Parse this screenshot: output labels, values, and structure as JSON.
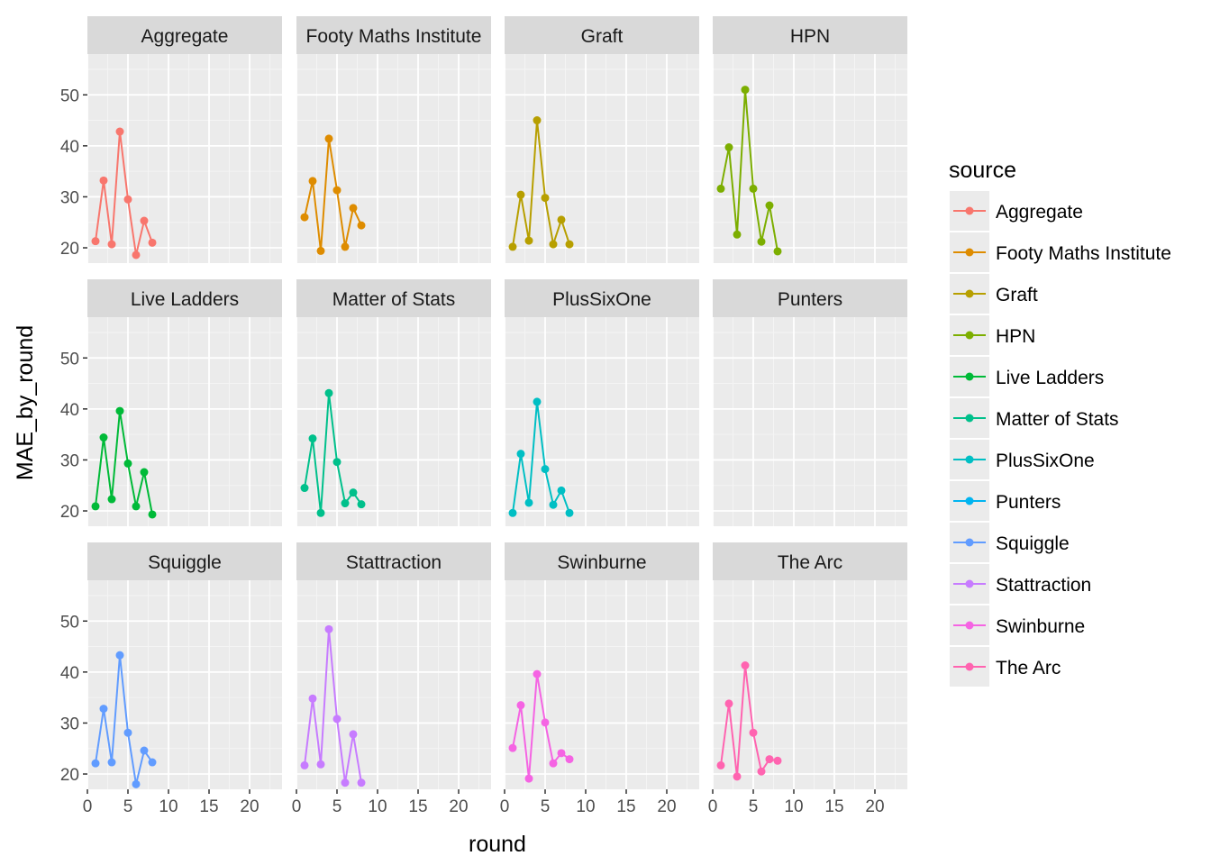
{
  "chart_data": {
    "type": "line",
    "facet_by": "source",
    "xlabel": "round",
    "ylabel": "MAE_by_round",
    "xlim": [
      0,
      24
    ],
    "ylim": [
      17,
      58
    ],
    "x_ticks": [
      0,
      5,
      10,
      15,
      20
    ],
    "y_ticks": [
      20,
      30,
      40,
      50
    ],
    "grid": true,
    "legend": {
      "title": "source",
      "placement": "right"
    },
    "panels": [
      {
        "name": "Aggregate",
        "color": "#F8766D",
        "x": [
          1,
          2,
          3,
          4,
          5,
          6,
          7,
          8
        ],
        "y": [
          21.3,
          33.2,
          20.7,
          42.8,
          29.5,
          18.6,
          25.3,
          21.0
        ]
      },
      {
        "name": "Footy Maths Institute",
        "color": "#DE8C00",
        "x": [
          1,
          2,
          3,
          4,
          5,
          6,
          7,
          8
        ],
        "y": [
          26.0,
          33.1,
          19.4,
          41.4,
          31.3,
          20.2,
          27.8,
          24.4
        ]
      },
      {
        "name": "Graft",
        "color": "#B79F00",
        "x": [
          1,
          2,
          3,
          4,
          5,
          6,
          7,
          8
        ],
        "y": [
          20.2,
          30.4,
          21.4,
          45.0,
          29.8,
          20.7,
          25.5,
          20.7
        ]
      },
      {
        "name": "HPN",
        "color": "#7CAE00",
        "x": [
          1,
          2,
          3,
          4,
          5,
          6,
          7,
          8
        ],
        "y": [
          31.6,
          39.7,
          22.6,
          51.0,
          31.6,
          21.2,
          28.3,
          19.3
        ]
      },
      {
        "name": "Live Ladders",
        "color": "#00BA38",
        "x": [
          1,
          2,
          3,
          4,
          5,
          6,
          7,
          8
        ],
        "y": [
          20.9,
          34.4,
          22.3,
          39.6,
          29.3,
          20.9,
          27.6,
          19.3
        ]
      },
      {
        "name": "Matter of Stats",
        "color": "#00C08B",
        "x": [
          1,
          2,
          3,
          4,
          5,
          6,
          7,
          8
        ],
        "y": [
          24.5,
          34.2,
          19.6,
          43.1,
          29.6,
          21.5,
          23.6,
          21.3
        ]
      },
      {
        "name": "PlusSixOne",
        "color": "#00BFC4",
        "x": [
          1,
          2,
          3,
          4,
          5,
          6,
          7,
          8
        ],
        "y": [
          19.6,
          31.2,
          21.6,
          41.4,
          28.2,
          21.2,
          24.0,
          19.6
        ]
      },
      {
        "name": "Punters",
        "color": "#00B4F0",
        "x": [],
        "y": []
      },
      {
        "name": "Squiggle",
        "color": "#619CFF",
        "x": [
          1,
          2,
          3,
          4,
          5,
          6,
          7,
          8
        ],
        "y": [
          22.1,
          32.8,
          22.3,
          43.3,
          28.1,
          18.0,
          24.6,
          22.3
        ]
      },
      {
        "name": "Stattraction",
        "color": "#C77CFF",
        "x": [
          1,
          2,
          3,
          4,
          5,
          6,
          7,
          8
        ],
        "y": [
          21.7,
          34.8,
          21.9,
          48.4,
          30.8,
          18.3,
          27.8,
          18.3
        ]
      },
      {
        "name": "Swinburne",
        "color": "#F564E3",
        "x": [
          1,
          2,
          3,
          4,
          5,
          6,
          7,
          8
        ],
        "y": [
          25.1,
          33.5,
          19.1,
          39.6,
          30.1,
          22.1,
          24.1,
          22.9
        ]
      },
      {
        "name": "The Arc",
        "color": "#FF64B0",
        "x": [
          1,
          2,
          3,
          4,
          5,
          6,
          7,
          8
        ],
        "y": [
          21.7,
          33.8,
          19.5,
          41.3,
          28.1,
          20.5,
          22.9,
          22.6
        ]
      }
    ]
  },
  "colors": {
    "panel_bg": "#EBEBEB",
    "strip_bg": "#D9D9D9",
    "grid_major": "#FFFFFF",
    "grid_minor": "#F4F4F4",
    "tick_text": "#4D4D4D"
  }
}
